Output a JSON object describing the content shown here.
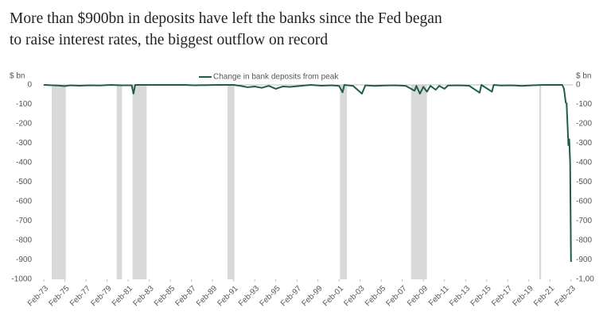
{
  "chart_data": {
    "type": "line",
    "title": "More than $900bn in deposits have left the banks since the Fed began to raise interest rates, the biggest outflow on record",
    "y_label": "$ bn",
    "y2_label": "$ bn",
    "xlim": [
      "1973-01",
      "2023-04"
    ],
    "ylim": [
      -1000,
      0
    ],
    "y2lim": [
      -1000,
      0
    ],
    "yticks": [
      0,
      -100,
      -200,
      -300,
      -400,
      -500,
      -600,
      -700,
      -800,
      -900,
      -1000
    ],
    "y2ticks": [
      0,
      -100,
      -200,
      -300,
      -400,
      -500,
      -600,
      -700,
      -800,
      -900,
      {
        "value": -1000,
        "label": "-1,00"
      }
    ],
    "xticks": [
      {
        "value": "1973-02",
        "label": "Feb-73"
      },
      {
        "value": "1975-02",
        "label": "Feb-75"
      },
      {
        "value": "1977-02",
        "label": "Feb-77"
      },
      {
        "value": "1979-02",
        "label": "Feb-79"
      },
      {
        "value": "1981-02",
        "label": "Feb-81"
      },
      {
        "value": "1983-02",
        "label": "Feb-83"
      },
      {
        "value": "1985-02",
        "label": "Feb-85"
      },
      {
        "value": "1987-02",
        "label": "Feb-87"
      },
      {
        "value": "1989-02",
        "label": "Feb-89"
      },
      {
        "value": "1991-02",
        "label": "Feb-91"
      },
      {
        "value": "1993-02",
        "label": "Feb-93"
      },
      {
        "value": "1995-02",
        "label": "Feb-95"
      },
      {
        "value": "1997-02",
        "label": "Feb-97"
      },
      {
        "value": "1999-02",
        "label": "Feb-99"
      },
      {
        "value": "2001-02",
        "label": "Feb-01"
      },
      {
        "value": "2003-02",
        "label": "Feb-03"
      },
      {
        "value": "2005-02",
        "label": "Feb-05"
      },
      {
        "value": "2007-02",
        "label": "Feb-07"
      },
      {
        "value": "2009-02",
        "label": "Feb-09"
      },
      {
        "value": "2011-02",
        "label": "Feb-11"
      },
      {
        "value": "2013-02",
        "label": "Feb-13"
      },
      {
        "value": "2015-02",
        "label": "Feb-15"
      },
      {
        "value": "2017-02",
        "label": "Feb-17"
      },
      {
        "value": "2019-02",
        "label": "Feb-19"
      },
      {
        "value": "2021-02",
        "label": "Feb-21"
      },
      {
        "value": "2023-02",
        "label": "Feb-23"
      }
    ],
    "shading": [
      [
        "1973-11",
        "1975-03"
      ],
      [
        "1980-01",
        "1980-07"
      ],
      [
        "1981-07",
        "1982-11"
      ],
      [
        "1990-07",
        "1991-03"
      ],
      [
        "2001-03",
        "2001-11"
      ],
      [
        "2007-12",
        "2009-06"
      ],
      [
        "2020-02",
        "2020-04"
      ]
    ],
    "shading_color": "#d9d9d9",
    "x": [
      "1973-02",
      "1974-06",
      "1975-02",
      "1975-08",
      "1976-06",
      "1977-06",
      "1978-06",
      "1979-06",
      "1980-06",
      "1981-06",
      "1981-08",
      "1981-10",
      "1983-06",
      "1986-06",
      "1987-06",
      "1989-06",
      "1991-02",
      "1991-10",
      "1992-06",
      "1993-02",
      "1993-10",
      "1994-06",
      "1995-02",
      "1995-10",
      "1996-06",
      "1997-06",
      "1998-06",
      "1999-06",
      "2000-06",
      "2001-02",
      "2001-06",
      "2001-08",
      "2002-06",
      "2003-04",
      "2003-08",
      "2004-06",
      "2005-06",
      "2006-06",
      "2007-06",
      "2008-04",
      "2008-06",
      "2008-10",
      "2009-02",
      "2009-06",
      "2009-10",
      "2010-04",
      "2010-08",
      "2011-02",
      "2011-06",
      "2012-06",
      "2013-06",
      "2014-06",
      "2014-08",
      "2015-08",
      "2015-10",
      "2016-06",
      "2017-06",
      "2018-06",
      "2019-06",
      "2020-06",
      "2021-06",
      "2022-04",
      "2022-06",
      "2022-08",
      "2022-09",
      "2022-10",
      "2022-11",
      "2022-12",
      "2023-01",
      "2023-02"
    ],
    "series": [
      {
        "name": "Change in bank deposits from peak",
        "color": "#1f5c4f",
        "values": [
          0,
          -3,
          -6,
          -2,
          -4,
          -2,
          -3,
          0,
          -2,
          -2,
          -45,
          0,
          0,
          0,
          -2,
          0,
          0,
          -5,
          -12,
          -8,
          -15,
          -5,
          -20,
          -8,
          -10,
          -5,
          0,
          -4,
          -2,
          -5,
          -38,
          0,
          -5,
          -45,
          -2,
          -5,
          -3,
          -2,
          -5,
          -30,
          -5,
          -45,
          -10,
          -35,
          -5,
          -25,
          -5,
          -20,
          -3,
          -2,
          -4,
          -40,
          0,
          -35,
          0,
          -3,
          -2,
          -5,
          -2,
          0,
          0,
          0,
          -20,
          -90,
          -95,
          -200,
          -310,
          -280,
          -400,
          -910
        ]
      }
    ]
  }
}
